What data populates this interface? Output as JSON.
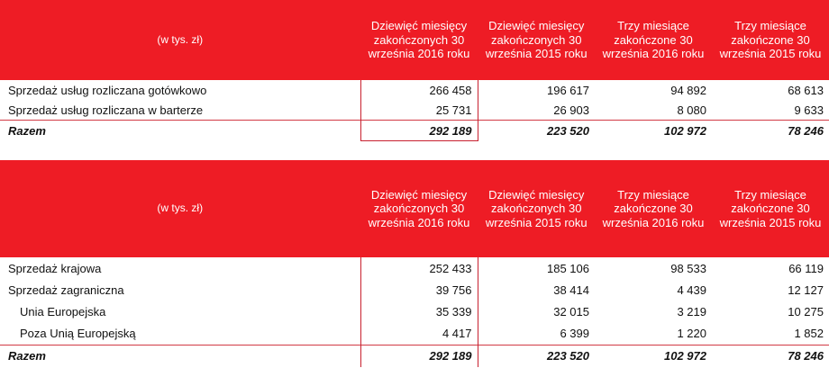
{
  "table1": {
    "header": {
      "unit": "(w tys. zł)",
      "columns": [
        "Dziewięć miesięcy zakończonych 30 września 2016 roku",
        "Dziewięć miesięcy zakończonych 30 września 2015 roku",
        "Trzy miesiące zakończone 30 września 2016 roku",
        "Trzy miesiące zakończone 30 września 2015 roku"
      ]
    },
    "rows": [
      {
        "label": "Sprzedaż usług rozliczana gotówkowo",
        "values": [
          "266 458",
          "196 617",
          "94 892",
          "68 613"
        ]
      },
      {
        "label": "Sprzedaż usług rozliczana w barterze",
        "values": [
          "25 731",
          "26 903",
          "8 080",
          "9 633"
        ]
      },
      {
        "label": "Razem",
        "values": [
          "292 189",
          "223 520",
          "102 972",
          "78 246"
        ]
      }
    ]
  },
  "table2": {
    "header": {
      "unit": "(w tys. zł)",
      "columns": [
        "Dziewięć miesięcy zakończonych 30 września 2016 roku",
        "Dziewięć miesięcy zakończonych 30 września 2015 roku",
        "Trzy miesiące zakończone 30 września 2016 roku",
        "Trzy miesiące zakończone 30 września 2015 roku"
      ]
    },
    "rows": [
      {
        "label": "Sprzedaż krajowa",
        "values": [
          "252 433",
          "185 106",
          "98 533",
          "66 119"
        ]
      },
      {
        "label": "Sprzedaż zagraniczna",
        "values": [
          "39 756",
          "38 414",
          "4 439",
          "12 127"
        ]
      },
      {
        "label": "Unia Europejska",
        "values": [
          "35 339",
          "32 015",
          "3 219",
          "10 275"
        ]
      },
      {
        "label": "Poza Unią Europejską",
        "values": [
          "4 417",
          "6 399",
          "1 220",
          "1 852"
        ]
      },
      {
        "label": "Razem",
        "values": [
          "292 189",
          "223 520",
          "102 972",
          "78 246"
        ]
      }
    ]
  },
  "colors": {
    "header_bg": "#ee1c25",
    "header_text": "#ffffff",
    "highlight_border": "#c8202f"
  }
}
